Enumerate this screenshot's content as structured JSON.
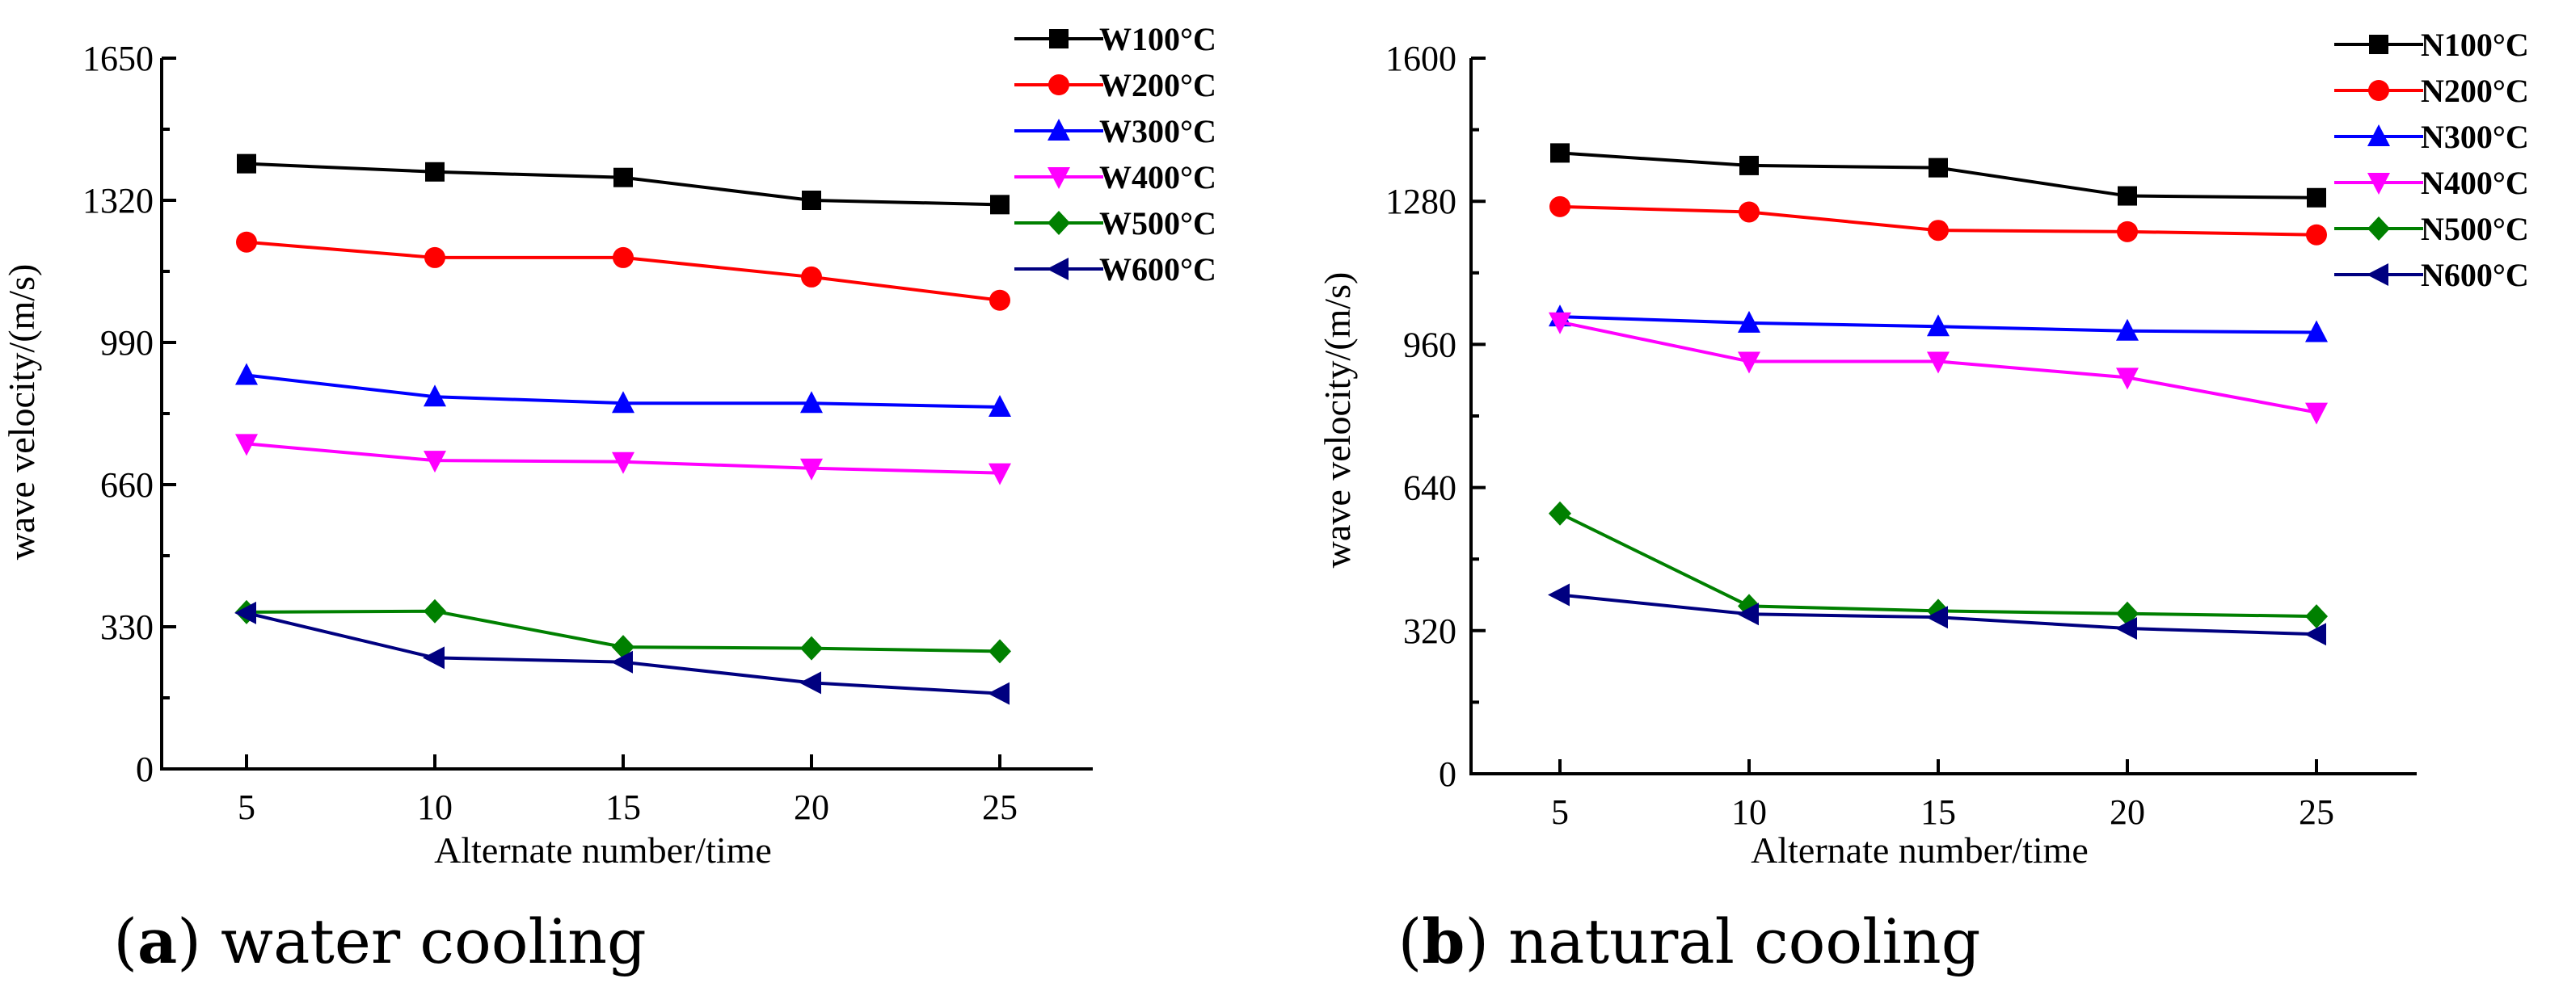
{
  "chart_data": [
    {
      "type": "line",
      "caption_letter": "a",
      "caption_text": "water cooling",
      "xlabel": "Alternate number/time",
      "ylabel": "wave velocity/(m/s)",
      "x": [
        5,
        10,
        15,
        20,
        25
      ],
      "x_ticks": [
        "5",
        "10",
        "15",
        "20",
        "25"
      ],
      "ylim": [
        0,
        1650
      ],
      "y_ticks": [
        0,
        330,
        660,
        990,
        1320,
        1650
      ],
      "legend_position": "top-right",
      "series": [
        {
          "name": "W100°C",
          "color": "#000000",
          "marker": "square",
          "values": [
            1405,
            1386,
            1373,
            1320,
            1310
          ]
        },
        {
          "name": "W200°C",
          "color": "#ff0000",
          "marker": "circle",
          "values": [
            1223,
            1187,
            1187,
            1142,
            1088
          ]
        },
        {
          "name": "W300°C",
          "color": "#0000ff",
          "marker": "triangle-up",
          "values": [
            914,
            864,
            849,
            849,
            840
          ]
        },
        {
          "name": "W400°C",
          "color": "#ff00ff",
          "marker": "triangle-down",
          "values": [
            755,
            716,
            713,
            698,
            687
          ]
        },
        {
          "name": "W500°C",
          "color": "#008000",
          "marker": "diamond",
          "values": [
            364,
            366,
            283,
            280,
            273
          ]
        },
        {
          "name": "W600°C",
          "color": "#000080",
          "marker": "triangle-left",
          "values": [
            362,
            258,
            248,
            200,
            175
          ]
        }
      ]
    },
    {
      "type": "line",
      "caption_letter": "b",
      "caption_text": "natural cooling",
      "xlabel": "Alternate number/time",
      "ylabel": "wave velocity/(m/s)",
      "x": [
        5,
        10,
        15,
        20,
        25
      ],
      "x_ticks": [
        "5",
        "10",
        "15",
        "20",
        "25"
      ],
      "ylim": [
        0,
        1600
      ],
      "y_ticks": [
        0,
        320,
        640,
        960,
        1280,
        1600
      ],
      "legend_position": "top-right",
      "series": [
        {
          "name": "N100°C",
          "color": "#000000",
          "marker": "square",
          "values": [
            1388,
            1360,
            1355,
            1292,
            1288
          ]
        },
        {
          "name": "N200°C",
          "color": "#ff0000",
          "marker": "circle",
          "values": [
            1268,
            1256,
            1215,
            1212,
            1205
          ]
        },
        {
          "name": "N300°C",
          "color": "#0000ff",
          "marker": "triangle-up",
          "values": [
            1022,
            1008,
            1000,
            990,
            987
          ]
        },
        {
          "name": "N400°C",
          "color": "#ff00ff",
          "marker": "triangle-down",
          "values": [
            1010,
            922,
            922,
            886,
            808
          ]
        },
        {
          "name": "N500°C",
          "color": "#008000",
          "marker": "diamond",
          "values": [
            582,
            375,
            364,
            358,
            352
          ]
        },
        {
          "name": "N600°C",
          "color": "#000080",
          "marker": "triangle-left",
          "values": [
            400,
            357,
            350,
            325,
            312
          ]
        }
      ]
    }
  ]
}
